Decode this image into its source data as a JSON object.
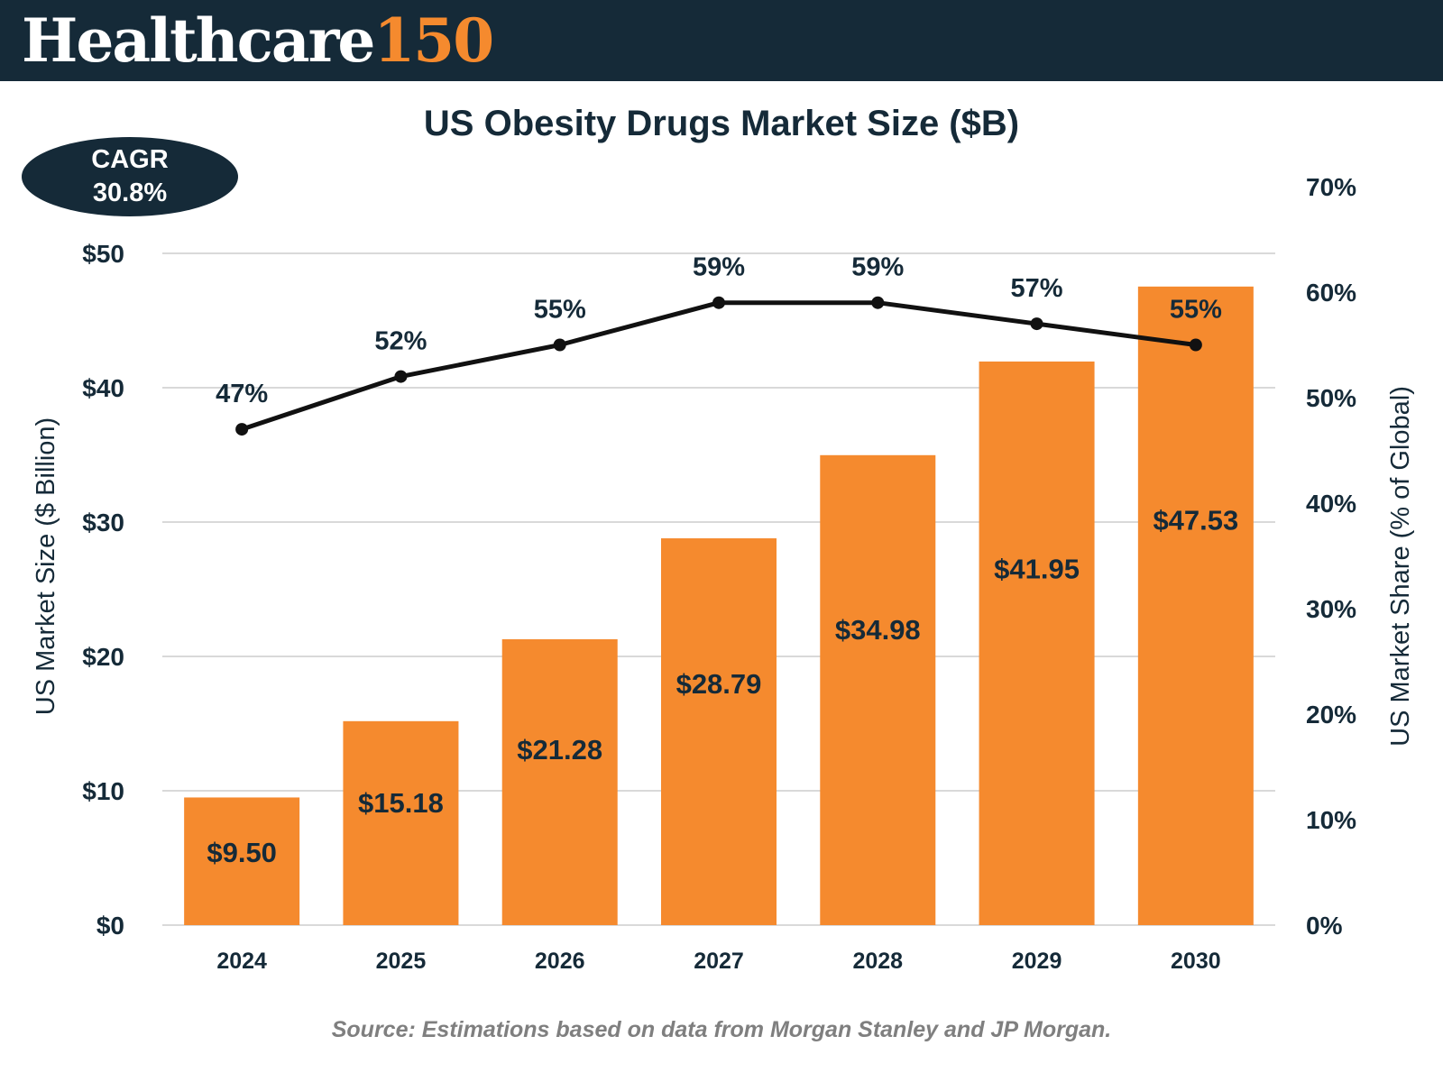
{
  "brand": {
    "name": "Healthcare",
    "number": "150"
  },
  "badge": {
    "label": "CAGR",
    "value": "30.8%"
  },
  "footer": {
    "source": "Source: Estimations based on data from Morgan Stanley and JP Morgan."
  },
  "colors": {
    "bar": "#f58a2e",
    "line": "#111111",
    "dark": "#152a38",
    "grid": "#d9d9d9"
  },
  "chart_data": {
    "type": "bar",
    "title": "US Obesity Drugs Market Size ($B)",
    "categories": [
      "2024",
      "2025",
      "2026",
      "2027",
      "2028",
      "2029",
      "2030"
    ],
    "series": [
      {
        "name": "US Market Size ($ Billion)",
        "type": "bar",
        "axis": "left",
        "values": [
          9.5,
          15.18,
          21.28,
          28.79,
          34.98,
          41.95,
          47.53
        ],
        "labels": [
          "$9.50",
          "$15.18",
          "$21.28",
          "$28.79",
          "$34.98",
          "$41.95",
          "$47.53"
        ]
      },
      {
        "name": "US Market Share (% of Global)",
        "type": "line",
        "axis": "right",
        "values": [
          47,
          52,
          55,
          59,
          59,
          57,
          55
        ],
        "labels": [
          "47%",
          "52%",
          "55%",
          "59%",
          "59%",
          "57%",
          "55%"
        ]
      }
    ],
    "ylabel": "US Market Size ($ Billion)",
    "ylim": [
      0,
      50
    ],
    "yticks": [
      "$0",
      "$10",
      "$20",
      "$30",
      "$40",
      "$50"
    ],
    "y2label": "US Market Share (% of Global)",
    "y2lim": [
      0,
      70
    ],
    "y2ticks": [
      "0%",
      "10%",
      "20%",
      "30%",
      "40%",
      "50%",
      "60%",
      "70%"
    ],
    "grid": true,
    "legend": "none"
  }
}
